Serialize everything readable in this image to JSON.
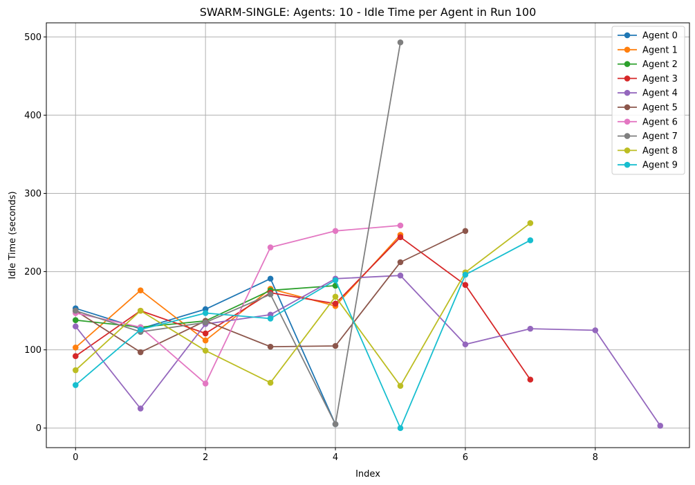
{
  "chart_data": {
    "type": "line",
    "title": "SWARM-SINGLE: Agents: 10 - Idle Time per Agent in Run 100",
    "xlabel": "Index",
    "ylabel": "Idle Time (seconds)",
    "xlim": [
      -0.45,
      9.45
    ],
    "ylim": [
      -25,
      518
    ],
    "xticks": [
      0,
      2,
      4,
      6,
      8
    ],
    "yticks": [
      0,
      100,
      200,
      300,
      400,
      500
    ],
    "grid": true,
    "legend_position": "top-right",
    "series": [
      {
        "name": "Agent 0",
        "color": "#1f77b4",
        "x": [
          0,
          1,
          2,
          3,
          4
        ],
        "values": [
          153,
          127,
          152,
          191,
          5
        ]
      },
      {
        "name": "Agent 1",
        "color": "#ff7f0e",
        "x": [
          0,
          1,
          2,
          3,
          4,
          5
        ],
        "values": [
          103,
          176,
          112,
          178,
          156,
          247
        ]
      },
      {
        "name": "Agent 2",
        "color": "#2ca02c",
        "x": [
          0,
          1,
          2,
          3,
          4
        ],
        "values": [
          138,
          129,
          137,
          176,
          182
        ]
      },
      {
        "name": "Agent 3",
        "color": "#d62728",
        "x": [
          0,
          1,
          2,
          3,
          4,
          5,
          6,
          7
        ],
        "values": [
          92,
          150,
          121,
          173,
          159,
          244,
          183,
          62
        ]
      },
      {
        "name": "Agent 4",
        "color": "#9467bd",
        "x": [
          0,
          1,
          2,
          3,
          4,
          5,
          6,
          7,
          8,
          9
        ],
        "values": [
          130,
          25,
          133,
          145,
          191,
          195,
          107,
          127,
          125,
          3
        ]
      },
      {
        "name": "Agent 5",
        "color": "#8c564b",
        "x": [
          0,
          1,
          2,
          3,
          4,
          5,
          6
        ],
        "values": [
          150,
          97,
          137,
          104,
          105,
          212,
          252
        ]
      },
      {
        "name": "Agent 6",
        "color": "#e377c2",
        "x": [
          0,
          1,
          2,
          3,
          4,
          5
        ],
        "values": [
          147,
          129,
          57,
          231,
          252,
          259
        ]
      },
      {
        "name": "Agent 7",
        "color": "#7f7f7f",
        "x": [
          0,
          1,
          2,
          3,
          4,
          5
        ],
        "values": [
          150,
          123,
          135,
          171,
          5,
          493
        ]
      },
      {
        "name": "Agent 8",
        "color": "#bcbd22",
        "x": [
          0,
          1,
          2,
          3,
          4,
          5,
          6,
          7
        ],
        "values": [
          74,
          150,
          99,
          58,
          168,
          54,
          199,
          262
        ]
      },
      {
        "name": "Agent 9",
        "color": "#17becf",
        "x": [
          0,
          1,
          2,
          3,
          4,
          5,
          6,
          7
        ],
        "values": [
          55,
          126,
          147,
          140,
          189,
          0,
          196,
          240
        ]
      }
    ]
  }
}
